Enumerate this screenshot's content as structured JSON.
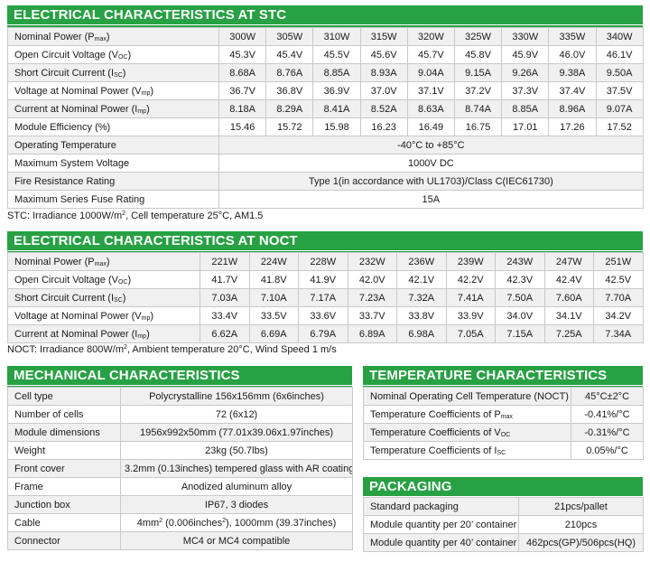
{
  "stc": {
    "title": "ELECTRICAL CHARACTERISTICS AT STC",
    "rows": [
      {
        "label": "Nominal Power (P",
        "sub": "max",
        "tail": ")",
        "values": [
          "300W",
          "305W",
          "310W",
          "315W",
          "320W",
          "325W",
          "330W",
          "335W",
          "340W"
        ]
      },
      {
        "label": "Open Circuit Voltage (V",
        "sub": "OC",
        "tail": ")",
        "values": [
          "45.3V",
          "45.4V",
          "45.5V",
          "45.6V",
          "45.7V",
          "45.8V",
          "45.9V",
          "46.0V",
          "46.1V"
        ]
      },
      {
        "label": "Short Circuit Current (I",
        "sub": "SC",
        "tail": ")",
        "values": [
          "8.68A",
          "8.76A",
          "8.85A",
          "8.93A",
          "9.04A",
          "9.15A",
          "9.26A",
          "9.38A",
          "9.50A"
        ]
      },
      {
        "label": "Voltage at Nominal Power (V",
        "sub": "mp",
        "tail": ")",
        "values": [
          "36.7V",
          "36.8V",
          "36.9V",
          "37.0V",
          "37.1V",
          "37.2V",
          "37.3V",
          "37.4V",
          "37.5V"
        ]
      },
      {
        "label": "Current at Nominal Power (I",
        "sub": "mp",
        "tail": ")",
        "values": [
          "8.18A",
          "8.29A",
          "8.41A",
          "8.52A",
          "8.63A",
          "8.74A",
          "8.85A",
          "8.96A",
          "9.07A"
        ]
      },
      {
        "label": "Module Efficiency (%)",
        "sub": "",
        "tail": "",
        "values": [
          "15.46",
          "15.72",
          "15.98",
          "16.23",
          "16.49",
          "16.75",
          "17.01",
          "17.26",
          "17.52"
        ]
      }
    ],
    "spans": [
      {
        "label": "Operating Temperature",
        "value": "-40°C to +85°C"
      },
      {
        "label": "Maximum System Voltage",
        "value": "1000V DC"
      },
      {
        "label": "Fire Resistance Rating",
        "value": "Type 1(in accordance with UL1703)/Class C(IEC61730)"
      },
      {
        "label": "Maximum Series Fuse Rating",
        "value": "15A"
      }
    ],
    "note_a": "STC: Irradiance 1000W/m",
    "note_sup": "2",
    "note_b": ", Cell temperature 25°C, AM1.5"
  },
  "noct": {
    "title": "ELECTRICAL CHARACTERISTICS AT NOCT",
    "rows": [
      {
        "label": "Nominal Power (P",
        "sub": "max",
        "tail": ")",
        "values": [
          "221W",
          "224W",
          "228W",
          "232W",
          "236W",
          "239W",
          "243W",
          "247W",
          "251W"
        ]
      },
      {
        "label": "Open Circuit Voltage (V",
        "sub": "OC",
        "tail": ")",
        "values": [
          "41.7V",
          "41.8V",
          "41.9V",
          "42.0V",
          "42.1V",
          "42.2V",
          "42.3V",
          "42.4V",
          "42.5V"
        ]
      },
      {
        "label": "Short Circuit Current (I",
        "sub": "SC",
        "tail": ")",
        "values": [
          "7.03A",
          "7.10A",
          "7.17A",
          "7.23A",
          "7.32A",
          "7.41A",
          "7.50A",
          "7.60A",
          "7.70A"
        ]
      },
      {
        "label": "Voltage at Nominal Power (V",
        "sub": "mp",
        "tail": ")",
        "values": [
          "33.4V",
          "33.5V",
          "33.6V",
          "33.7V",
          "33.8V",
          "33.9V",
          "34.0V",
          "34.1V",
          "34.2V"
        ]
      },
      {
        "label": "Current at Nominal Power (I",
        "sub": "mp",
        "tail": ")",
        "values": [
          "6.62A",
          "6.69A",
          "6.79A",
          "6.89A",
          "6.98A",
          "7.05A",
          "7.15A",
          "7.25A",
          "7.34A"
        ]
      }
    ],
    "note_a": "NOCT: Irradiance 800W/m",
    "note_sup": "2",
    "note_b": ", Ambient temperature 20°C, Wind Speed 1 m/s"
  },
  "mechanical": {
    "title": "MECHANICAL CHARACTERISTICS",
    "rows": [
      {
        "label": "Cell type",
        "value": "Polycrystalline 156x156mm (6x6inches)"
      },
      {
        "label": "Number of cells",
        "value": "72 (6x12)"
      },
      {
        "label": "Module dimensions",
        "value": "1956x992x50mm (77.01x39.06x1.97inches)"
      },
      {
        "label": "Weight",
        "value": "23kg (50.7lbs)"
      },
      {
        "label": "Front cover",
        "value": "3.2mm (0.13inches) tempered glass with AR coating"
      },
      {
        "label": "Frame",
        "value": "Anodized aluminum alloy"
      },
      {
        "label": "Junction box",
        "value": "IP67, 3 diodes"
      },
      {
        "label": "Cable",
        "value_a": "4mm",
        "value_sup1": "2",
        "value_b": " (0.006inches",
        "value_sup2": "2",
        "value_c": "), 1000mm (39.37inches)"
      },
      {
        "label": "Connector",
        "value": "MC4 or MC4 compatible"
      }
    ]
  },
  "temperature": {
    "title": "TEMPERATURE CHARACTERISTICS",
    "rows": [
      {
        "label": "Nominal Operating Cell Temperature (NOCT)",
        "sub": "",
        "tail": "",
        "value": "45°C±2°C"
      },
      {
        "label": "Temperature Coefficients of P",
        "sub": "max",
        "tail": "",
        "value": "-0.41%/°C"
      },
      {
        "label": "Temperature Coefficients of V",
        "sub": "OC",
        "tail": "",
        "value": "-0.31%/°C"
      },
      {
        "label": "Temperature Coefficients of I",
        "sub": "SC",
        "tail": "",
        "value": "0.05%/°C"
      }
    ]
  },
  "packaging": {
    "title": "PACKAGING",
    "rows": [
      {
        "label": "Standard packaging",
        "value": "21pcs/pallet"
      },
      {
        "label": "Module quantity per 20’ container",
        "value": "210pcs"
      },
      {
        "label": "Module quantity per 40’ container",
        "value": "462pcs(GP)/506pcs(HQ)"
      }
    ]
  },
  "colors": {
    "header": "#27a143",
    "row_alt": "#f0f0f0",
    "border": "#c9c9c9"
  }
}
